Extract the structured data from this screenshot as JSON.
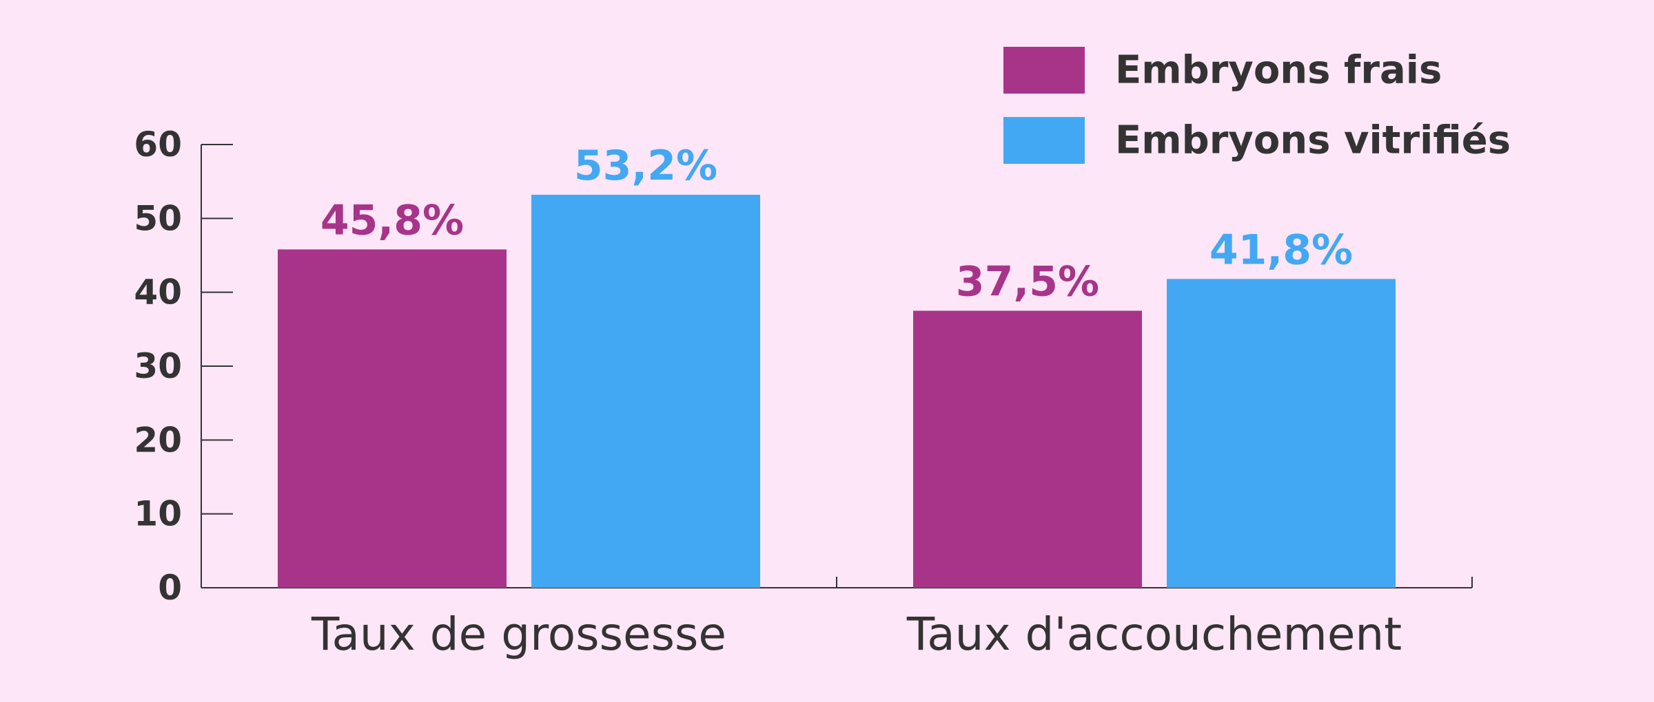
{
  "chart_data": {
    "type": "bar",
    "categories": [
      "Taux de grossesse",
      "Taux d'accouchement"
    ],
    "series": [
      {
        "name": "Embryons frais",
        "color": "#a8348a",
        "values": [
          45.8,
          37.5
        ],
        "labels": [
          "45,8%",
          "37,5%"
        ]
      },
      {
        "name": "Embryons vitrifiés",
        "color": "#42a8f3",
        "values": [
          53.2,
          41.8
        ],
        "labels": [
          "53,2%",
          "41,8%"
        ]
      }
    ],
    "ylim": [
      0,
      60
    ],
    "yticks": [
      0,
      10,
      20,
      30,
      40,
      50,
      60
    ],
    "grid": false,
    "legend": "top-right",
    "title": "",
    "xlabel": "",
    "ylabel": ""
  }
}
